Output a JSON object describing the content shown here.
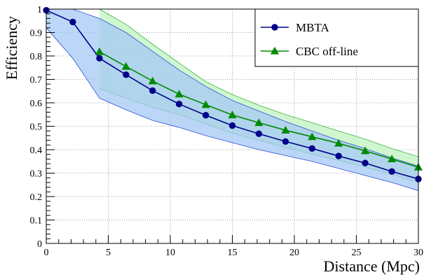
{
  "chart_data": {
    "type": "line",
    "title": "",
    "xlabel": "Distance (Mpc)",
    "ylabel": "Efficiency",
    "xlim": [
      0,
      30
    ],
    "ylim": [
      0,
      1
    ],
    "grid": true,
    "legend_position": "top-right",
    "x_ticks": [
      0,
      5,
      10,
      15,
      20,
      25,
      30
    ],
    "y_ticks": [
      0,
      0.1,
      0.2,
      0.3,
      0.4,
      0.5,
      0.6,
      0.7,
      0.8,
      0.9,
      1
    ],
    "series": [
      {
        "name": "MBTA",
        "color": "#00008b",
        "band_fill": "#a6c8f5",
        "band_edge": "#2d4fd6",
        "marker": "circle",
        "x": [
          0,
          2.14,
          4.29,
          6.43,
          8.57,
          10.71,
          12.86,
          15,
          17.14,
          19.29,
          21.43,
          23.57,
          25.71,
          27.86,
          30
        ],
        "y": [
          0.995,
          0.945,
          0.79,
          0.72,
          0.652,
          0.595,
          0.547,
          0.503,
          0.468,
          0.435,
          0.405,
          0.373,
          0.343,
          0.307,
          0.275
        ],
        "band_upper": [
          1.0,
          1.0,
          0.96,
          0.9,
          0.82,
          0.74,
          0.67,
          0.61,
          0.565,
          0.52,
          0.48,
          0.44,
          0.405,
          0.365,
          0.33
        ],
        "band_lower": [
          0.92,
          0.79,
          0.62,
          0.57,
          0.525,
          0.495,
          0.46,
          0.43,
          0.4,
          0.375,
          0.35,
          0.32,
          0.29,
          0.26,
          0.225
        ]
      },
      {
        "name": "CBC off-line",
        "color": "#008b00",
        "band_fill": "#c8f5c8",
        "band_edge": "#3cb43c",
        "marker": "triangle",
        "x": [
          4.29,
          6.43,
          8.57,
          10.71,
          12.86,
          15,
          17.14,
          19.29,
          21.43,
          23.57,
          25.71,
          27.86,
          30
        ],
        "y": [
          0.818,
          0.755,
          0.693,
          0.637,
          0.592,
          0.548,
          0.515,
          0.483,
          0.455,
          0.427,
          0.395,
          0.36,
          0.325
        ],
        "band_upper": [
          1.0,
          0.935,
          0.85,
          0.77,
          0.69,
          0.635,
          0.59,
          0.55,
          0.515,
          0.48,
          0.445,
          0.405,
          0.37
        ],
        "band_lower": [
          0.66,
          0.62,
          0.58,
          0.55,
          0.51,
          0.47,
          0.44,
          0.41,
          0.38,
          0.355,
          0.325,
          0.295,
          0.26
        ]
      }
    ]
  }
}
